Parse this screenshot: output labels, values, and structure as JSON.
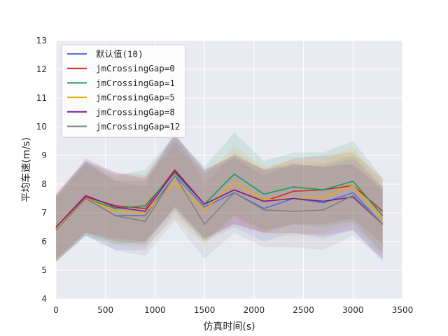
{
  "chart_data": {
    "type": "line",
    "xlabel": "仿真时间(s)",
    "ylabel": "平均车速(m/s)",
    "xlim": [
      0,
      3500
    ],
    "ylim": [
      4,
      13
    ],
    "xticks": [
      0,
      500,
      1000,
      1500,
      2000,
      2500,
      3000,
      3500
    ],
    "yticks": [
      4,
      5,
      6,
      7,
      8,
      9,
      10,
      11,
      12,
      13
    ],
    "grid": true,
    "legend_position": "top-left",
    "x": [
      0,
      300,
      600,
      900,
      1200,
      1500,
      1800,
      2100,
      2400,
      2700,
      3000,
      3300
    ],
    "series": [
      {
        "name": "默认值(10)",
        "color": "#4c72dc",
        "values": [
          6.45,
          7.5,
          6.9,
          6.9,
          8.3,
          7.2,
          7.7,
          7.15,
          7.5,
          7.35,
          7.7,
          6.6
        ],
        "band_upper": [
          7.6,
          8.8,
          8.1,
          8.1,
          9.5,
          8.4,
          8.9,
          8.3,
          8.7,
          8.6,
          8.9,
          7.9
        ],
        "band_lower": [
          5.3,
          6.2,
          5.7,
          5.7,
          7.0,
          6.0,
          6.5,
          6.0,
          6.3,
          6.1,
          6.4,
          5.3
        ]
      },
      {
        "name": "jmCrossingGap=0",
        "color": "#d62728",
        "values": [
          6.5,
          7.55,
          7.25,
          7.15,
          8.5,
          7.3,
          7.8,
          7.4,
          7.75,
          7.8,
          7.95,
          7.05
        ],
        "band_upper": [
          7.7,
          8.8,
          8.4,
          8.3,
          9.7,
          8.5,
          9.0,
          8.5,
          8.9,
          9.0,
          9.1,
          8.2
        ],
        "band_lower": [
          5.3,
          6.3,
          6.1,
          6.0,
          7.2,
          6.1,
          6.6,
          6.3,
          6.6,
          6.6,
          6.8,
          5.9
        ]
      },
      {
        "name": "jmCrossingGap=1",
        "color": "#13a050",
        "values": [
          6.4,
          7.5,
          7.15,
          7.25,
          8.4,
          7.3,
          8.35,
          7.65,
          7.9,
          7.8,
          8.1,
          6.9
        ],
        "band_upper": [
          7.6,
          8.8,
          8.3,
          8.5,
          9.7,
          8.6,
          9.8,
          8.8,
          9.1,
          9.1,
          9.5,
          8.2
        ],
        "band_lower": [
          5.3,
          6.2,
          5.9,
          6.0,
          7.1,
          6.0,
          6.9,
          6.4,
          6.6,
          6.5,
          6.7,
          5.6
        ]
      },
      {
        "name": "jmCrossingGap=5",
        "color": "#f0a800",
        "values": [
          6.45,
          7.5,
          7.05,
          7.0,
          8.05,
          7.1,
          8.05,
          7.45,
          7.5,
          7.55,
          7.95,
          6.75
        ],
        "band_upper": [
          7.6,
          8.7,
          8.2,
          8.2,
          9.3,
          8.3,
          9.3,
          8.6,
          8.8,
          8.8,
          9.3,
          8.0
        ],
        "band_lower": [
          5.3,
          6.3,
          5.9,
          5.8,
          6.8,
          5.9,
          6.8,
          6.3,
          6.2,
          6.3,
          6.6,
          5.5
        ]
      },
      {
        "name": "jmCrossingGap=8",
        "color": "#7b1e8c",
        "values": [
          6.5,
          7.6,
          7.2,
          7.05,
          8.45,
          7.3,
          7.8,
          7.4,
          7.5,
          7.4,
          7.55,
          6.6
        ],
        "band_upper": [
          7.6,
          8.9,
          8.4,
          8.2,
          9.7,
          8.5,
          9.0,
          8.5,
          8.7,
          8.6,
          8.7,
          7.8
        ],
        "band_lower": [
          5.4,
          6.3,
          6.0,
          5.9,
          7.2,
          6.1,
          6.6,
          6.3,
          6.3,
          6.2,
          6.4,
          5.4
        ]
      },
      {
        "name": "jmCrossingGap=12",
        "color": "#808080",
        "values": [
          6.4,
          7.5,
          6.9,
          6.7,
          8.3,
          6.6,
          7.7,
          7.1,
          7.05,
          7.1,
          7.6,
          6.6
        ],
        "band_upper": [
          7.5,
          8.7,
          8.1,
          7.9,
          9.9,
          8.0,
          9.1,
          8.5,
          8.6,
          8.7,
          9.0,
          7.9
        ],
        "band_lower": [
          5.3,
          6.2,
          5.7,
          5.5,
          6.7,
          5.4,
          6.3,
          5.8,
          5.8,
          5.7,
          6.2,
          5.4
        ]
      }
    ]
  },
  "colors": {
    "plot_background": "#eaeaf2",
    "grid": "#ffffff",
    "text": "#262626"
  }
}
